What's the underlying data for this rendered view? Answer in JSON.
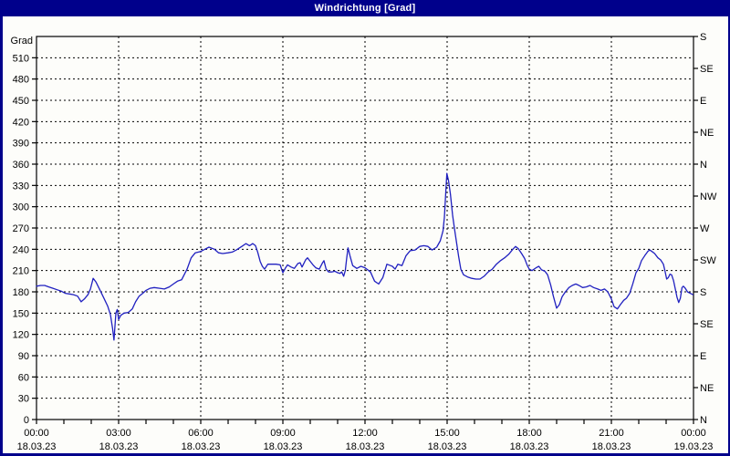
{
  "window": {
    "title": "Windrichtung [Grad]"
  },
  "colors": {
    "titlebar_bg": "#00008B",
    "titlebar_text": "#FFFFFF",
    "frame_border": "#00008B",
    "plot_background": "#FDFDFA",
    "axis": "#000000",
    "grid": "#000000",
    "line": "#2020C0"
  },
  "chart_data": {
    "type": "line",
    "title": "Windrichtung [Grad]",
    "ylabel": "Grad",
    "y_min": 0,
    "y_max": 540,
    "y_step": 30,
    "x_min_hours": 0,
    "x_max_hours": 24,
    "x_minor_step_hours": 1,
    "x_major_step_hours": 3,
    "grid": true,
    "y_ticks_left": [
      0,
      30,
      60,
      90,
      120,
      150,
      180,
      210,
      240,
      270,
      300,
      330,
      360,
      390,
      420,
      450,
      480,
      510
    ],
    "y_ticks_right": [
      {
        "deg": 0,
        "label": "N"
      },
      {
        "deg": 45,
        "label": "NE"
      },
      {
        "deg": 90,
        "label": "E"
      },
      {
        "deg": 135,
        "label": "SE"
      },
      {
        "deg": 180,
        "label": "S"
      },
      {
        "deg": 225,
        "label": "SW"
      },
      {
        "deg": 270,
        "label": "W"
      },
      {
        "deg": 315,
        "label": "NW"
      },
      {
        "deg": 360,
        "label": "N"
      },
      {
        "deg": 405,
        "label": "NE"
      },
      {
        "deg": 450,
        "label": "E"
      },
      {
        "deg": 495,
        "label": "SE"
      },
      {
        "deg": 540,
        "label": "S"
      }
    ],
    "x_ticks": [
      {
        "hour": 0,
        "time": "00:00",
        "date": "18.03.23"
      },
      {
        "hour": 3,
        "time": "03:00",
        "date": "18.03.23"
      },
      {
        "hour": 6,
        "time": "06:00",
        "date": "18.03.23"
      },
      {
        "hour": 9,
        "time": "09:00",
        "date": "18.03.23"
      },
      {
        "hour": 12,
        "time": "12:00",
        "date": "18.03.23"
      },
      {
        "hour": 15,
        "time": "15:00",
        "date": "18.03.23"
      },
      {
        "hour": 18,
        "time": "18:00",
        "date": "18.03.23"
      },
      {
        "hour": 21,
        "time": "21:00",
        "date": "18.03.23"
      },
      {
        "hour": 24,
        "time": "00:00",
        "date": "19.03.23"
      }
    ],
    "series": [
      {
        "name": "Windrichtung",
        "unit": "Grad",
        "points": [
          [
            0.0,
            188
          ],
          [
            0.15,
            189
          ],
          [
            0.3,
            189
          ],
          [
            0.45,
            187
          ],
          [
            0.6,
            185
          ],
          [
            0.75,
            183
          ],
          [
            0.9,
            181
          ],
          [
            1.05,
            178
          ],
          [
            1.2,
            177
          ],
          [
            1.35,
            176
          ],
          [
            1.5,
            174
          ],
          [
            1.63,
            166
          ],
          [
            1.75,
            170
          ],
          [
            1.88,
            176
          ],
          [
            1.97,
            184
          ],
          [
            2.07,
            199
          ],
          [
            2.17,
            194
          ],
          [
            2.3,
            184
          ],
          [
            2.45,
            172
          ],
          [
            2.6,
            160
          ],
          [
            2.7,
            148
          ],
          [
            2.78,
            128
          ],
          [
            2.83,
            112
          ],
          [
            2.9,
            150
          ],
          [
            2.95,
            155
          ],
          [
            3.0,
            141
          ],
          [
            3.08,
            147
          ],
          [
            3.2,
            150
          ],
          [
            3.35,
            151
          ],
          [
            3.5,
            156
          ],
          [
            3.62,
            166
          ],
          [
            3.75,
            174
          ],
          [
            3.88,
            178
          ],
          [
            4.0,
            182
          ],
          [
            4.15,
            185
          ],
          [
            4.3,
            186
          ],
          [
            4.5,
            185
          ],
          [
            4.67,
            184
          ],
          [
            4.85,
            187
          ],
          [
            5.0,
            191
          ],
          [
            5.15,
            195
          ],
          [
            5.3,
            197
          ],
          [
            5.5,
            212
          ],
          [
            5.65,
            228
          ],
          [
            5.8,
            235
          ],
          [
            6.0,
            237
          ],
          [
            6.15,
            240
          ],
          [
            6.3,
            243
          ],
          [
            6.5,
            240
          ],
          [
            6.65,
            235
          ],
          [
            6.8,
            234
          ],
          [
            7.0,
            235
          ],
          [
            7.15,
            236
          ],
          [
            7.3,
            239
          ],
          [
            7.5,
            244
          ],
          [
            7.65,
            248
          ],
          [
            7.78,
            245
          ],
          [
            7.9,
            248
          ],
          [
            8.0,
            245
          ],
          [
            8.08,
            236
          ],
          [
            8.17,
            223
          ],
          [
            8.25,
            216
          ],
          [
            8.33,
            212
          ],
          [
            8.45,
            219
          ],
          [
            8.6,
            219
          ],
          [
            8.75,
            219
          ],
          [
            8.9,
            218
          ],
          [
            9.0,
            207
          ],
          [
            9.1,
            214
          ],
          [
            9.17,
            218
          ],
          [
            9.3,
            215
          ],
          [
            9.42,
            213
          ],
          [
            9.55,
            220
          ],
          [
            9.63,
            221
          ],
          [
            9.7,
            215
          ],
          [
            9.83,
            225
          ],
          [
            9.9,
            228
          ],
          [
            10.0,
            223
          ],
          [
            10.1,
            218
          ],
          [
            10.2,
            214
          ],
          [
            10.33,
            212
          ],
          [
            10.45,
            221
          ],
          [
            10.5,
            224
          ],
          [
            10.58,
            212
          ],
          [
            10.67,
            208
          ],
          [
            10.78,
            208
          ],
          [
            10.9,
            209
          ],
          [
            11.0,
            207
          ],
          [
            11.08,
            206
          ],
          [
            11.15,
            208
          ],
          [
            11.22,
            202
          ],
          [
            11.28,
            210
          ],
          [
            11.33,
            227
          ],
          [
            11.38,
            242
          ],
          [
            11.45,
            231
          ],
          [
            11.55,
            217
          ],
          [
            11.7,
            213
          ],
          [
            11.85,
            216
          ],
          [
            12.0,
            214
          ],
          [
            12.2,
            208
          ],
          [
            12.35,
            195
          ],
          [
            12.5,
            191
          ],
          [
            12.65,
            200
          ],
          [
            12.8,
            219
          ],
          [
            12.93,
            217
          ],
          [
            13.0,
            216
          ],
          [
            13.1,
            212
          ],
          [
            13.2,
            219
          ],
          [
            13.35,
            217
          ],
          [
            13.5,
            231
          ],
          [
            13.65,
            238
          ],
          [
            13.83,
            239
          ],
          [
            14.0,
            244
          ],
          [
            14.15,
            245
          ],
          [
            14.3,
            244
          ],
          [
            14.45,
            239
          ],
          [
            14.62,
            243
          ],
          [
            14.75,
            252
          ],
          [
            14.85,
            266
          ],
          [
            14.9,
            285
          ],
          [
            14.95,
            320
          ],
          [
            14.99,
            347
          ],
          [
            15.05,
            337
          ],
          [
            15.12,
            318
          ],
          [
            15.2,
            288
          ],
          [
            15.28,
            266
          ],
          [
            15.35,
            248
          ],
          [
            15.42,
            230
          ],
          [
            15.5,
            212
          ],
          [
            15.6,
            204
          ],
          [
            15.75,
            201
          ],
          [
            15.9,
            199
          ],
          [
            16.05,
            198
          ],
          [
            16.2,
            198
          ],
          [
            16.35,
            202
          ],
          [
            16.5,
            208
          ],
          [
            16.65,
            212
          ],
          [
            16.8,
            219
          ],
          [
            16.95,
            224
          ],
          [
            17.1,
            228
          ],
          [
            17.25,
            233
          ],
          [
            17.4,
            240
          ],
          [
            17.5,
            244
          ],
          [
            17.6,
            241
          ],
          [
            17.72,
            234
          ],
          [
            17.83,
            227
          ],
          [
            17.93,
            217
          ],
          [
            18.0,
            212
          ],
          [
            18.1,
            210
          ],
          [
            18.25,
            214
          ],
          [
            18.35,
            216
          ],
          [
            18.45,
            211
          ],
          [
            18.57,
            209
          ],
          [
            18.67,
            204
          ],
          [
            18.78,
            190
          ],
          [
            18.88,
            174
          ],
          [
            19.0,
            157
          ],
          [
            19.1,
            162
          ],
          [
            19.2,
            173
          ],
          [
            19.32,
            180
          ],
          [
            19.45,
            186
          ],
          [
            19.57,
            189
          ],
          [
            19.7,
            191
          ],
          [
            19.82,
            189
          ],
          [
            19.95,
            186
          ],
          [
            20.08,
            187
          ],
          [
            20.22,
            189
          ],
          [
            20.35,
            186
          ],
          [
            20.5,
            184
          ],
          [
            20.62,
            182
          ],
          [
            20.75,
            184
          ],
          [
            20.87,
            180
          ],
          [
            21.0,
            170
          ],
          [
            21.1,
            159
          ],
          [
            21.22,
            156
          ],
          [
            21.33,
            162
          ],
          [
            21.45,
            168
          ],
          [
            21.55,
            171
          ],
          [
            21.67,
            178
          ],
          [
            21.78,
            191
          ],
          [
            21.9,
            207
          ],
          [
            22.0,
            213
          ],
          [
            22.1,
            224
          ],
          [
            22.22,
            231
          ],
          [
            22.33,
            237
          ],
          [
            22.4,
            239
          ],
          [
            22.48,
            237
          ],
          [
            22.58,
            234
          ],
          [
            22.7,
            228
          ],
          [
            22.8,
            225
          ],
          [
            22.9,
            219
          ],
          [
            22.96,
            209
          ],
          [
            23.02,
            198
          ],
          [
            23.08,
            200
          ],
          [
            23.14,
            205
          ],
          [
            23.2,
            204
          ],
          [
            23.27,
            196
          ],
          [
            23.33,
            185
          ],
          [
            23.4,
            172
          ],
          [
            23.46,
            165
          ],
          [
            23.52,
            171
          ],
          [
            23.58,
            186
          ],
          [
            23.63,
            188
          ],
          [
            23.7,
            185
          ],
          [
            23.78,
            180
          ],
          [
            23.88,
            178
          ],
          [
            23.98,
            176
          ]
        ]
      }
    ]
  }
}
